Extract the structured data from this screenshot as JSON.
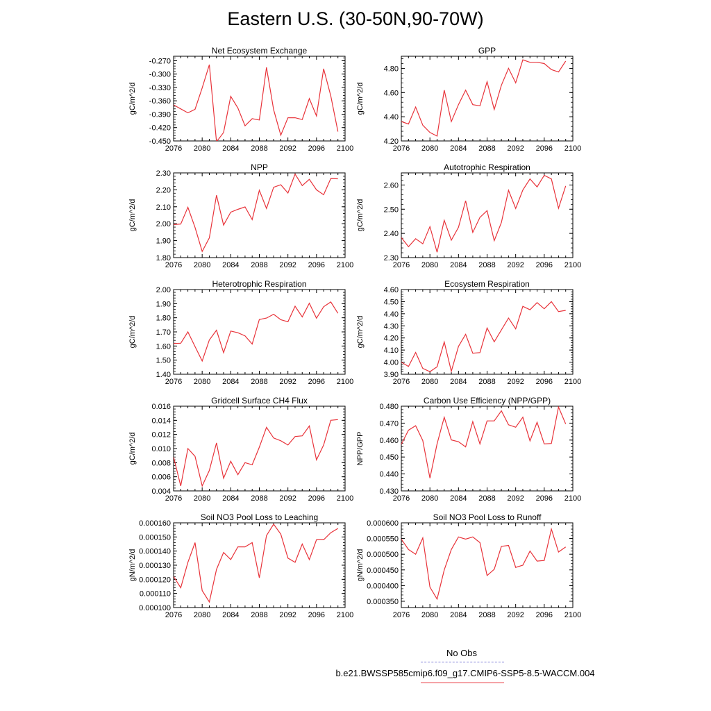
{
  "title": "Eastern U.S. (30-50N,90-70W)",
  "legend": {
    "obs_label": "No Obs",
    "obs_color": "#7b7bd6",
    "model_label": "b.e21.BWSSP585cmip6.f09_g17.CMIP6-SSP5-8.5-WACCM.004",
    "model_color": "#e8333a"
  },
  "chart_data": [
    {
      "type": "line",
      "title": "Net Ecosystem Exchange",
      "ylabel": "gC/m^2/d",
      "xlim": [
        2076,
        2100
      ],
      "ylim": [
        -0.45,
        -0.26
      ],
      "xticks": [
        "2076",
        "2080",
        "2084",
        "2088",
        "2092",
        "2096",
        "2100"
      ],
      "yticks": [
        "-0.270",
        "-0.300",
        "-0.330",
        "-0.360",
        "-0.390",
        "-0.420",
        "-0.450"
      ],
      "x": [
        2076,
        2077,
        2078,
        2079,
        2080,
        2081,
        2082,
        2083,
        2084,
        2085,
        2086,
        2087,
        2088,
        2089,
        2090,
        2091,
        2092,
        2093,
        2094,
        2095,
        2096,
        2097,
        2098,
        2099
      ],
      "series": [
        {
          "color": "#e8333a",
          "values": [
            -0.369,
            -0.378,
            -0.387,
            -0.379,
            -0.331,
            -0.279,
            -0.452,
            -0.431,
            -0.35,
            -0.376,
            -0.416,
            -0.4,
            -0.403,
            -0.285,
            -0.38,
            -0.437,
            -0.398,
            -0.398,
            -0.402,
            -0.355,
            -0.394,
            -0.288,
            -0.349,
            -0.429
          ]
        }
      ]
    },
    {
      "type": "line",
      "title": "GPP",
      "ylabel": "gC/m^2/d",
      "xlim": [
        2076,
        2100
      ],
      "ylim": [
        4.2,
        4.9
      ],
      "xticks": [
        "2076",
        "2080",
        "2084",
        "2088",
        "2092",
        "2096",
        "2100"
      ],
      "yticks": [
        "4.80",
        "4.60",
        "4.40",
        "4.20"
      ],
      "x": [
        2076,
        2077,
        2078,
        2079,
        2080,
        2081,
        2082,
        2083,
        2084,
        2085,
        2086,
        2087,
        2088,
        2089,
        2090,
        2091,
        2092,
        2093,
        2094,
        2095,
        2096,
        2097,
        2098,
        2099
      ],
      "series": [
        {
          "color": "#e8333a",
          "values": [
            4.36,
            4.34,
            4.48,
            4.33,
            4.27,
            4.24,
            4.62,
            4.36,
            4.5,
            4.62,
            4.5,
            4.49,
            4.69,
            4.46,
            4.66,
            4.8,
            4.68,
            4.87,
            4.85,
            4.85,
            4.84,
            4.79,
            4.77,
            4.86
          ]
        }
      ]
    },
    {
      "type": "line",
      "title": "NPP",
      "ylabel": "gC/m^2/d",
      "xlim": [
        2076,
        2100
      ],
      "ylim": [
        1.8,
        2.3
      ],
      "xticks": [
        "2076",
        "2080",
        "2084",
        "2088",
        "2092",
        "2096",
        "2100"
      ],
      "yticks": [
        "2.30",
        "2.20",
        "2.10",
        "2.00",
        "1.90",
        "1.80"
      ],
      "x": [
        2076,
        2077,
        2078,
        2079,
        2080,
        2081,
        2082,
        2083,
        2084,
        2085,
        2086,
        2087,
        2088,
        2089,
        2090,
        2091,
        2092,
        2093,
        2094,
        2095,
        2096,
        2097,
        2098,
        2099
      ],
      "series": [
        {
          "color": "#e8333a",
          "values": [
            1.995,
            1.998,
            2.097,
            1.978,
            1.836,
            1.917,
            2.168,
            1.992,
            2.068,
            2.085,
            2.099,
            2.024,
            2.197,
            2.09,
            2.215,
            2.23,
            2.181,
            2.293,
            2.225,
            2.262,
            2.2,
            2.171,
            2.267,
            2.265
          ]
        }
      ]
    },
    {
      "type": "line",
      "title": "Autotrophic Respiration",
      "ylabel": "gC/m^2/d",
      "xlim": [
        2076,
        2100
      ],
      "ylim": [
        2.3,
        2.65
      ],
      "xticks": [
        "2076",
        "2080",
        "2084",
        "2088",
        "2092",
        "2096",
        "2100"
      ],
      "yticks": [
        "2.60",
        "2.50",
        "2.40",
        "2.30"
      ],
      "x": [
        2076,
        2077,
        2078,
        2079,
        2080,
        2081,
        2082,
        2083,
        2084,
        2085,
        2086,
        2087,
        2088,
        2089,
        2090,
        2091,
        2092,
        2093,
        2094,
        2095,
        2096,
        2097,
        2098,
        2099
      ],
      "series": [
        {
          "color": "#e8333a",
          "values": [
            2.383,
            2.345,
            2.378,
            2.357,
            2.428,
            2.322,
            2.454,
            2.372,
            2.425,
            2.535,
            2.404,
            2.466,
            2.494,
            2.37,
            2.445,
            2.578,
            2.503,
            2.579,
            2.625,
            2.592,
            2.64,
            2.625,
            2.504,
            2.596
          ]
        }
      ]
    },
    {
      "type": "line",
      "title": "Heterotrophic Respiration",
      "ylabel": "gC/m^2/d",
      "xlim": [
        2076,
        2100
      ],
      "ylim": [
        1.4,
        2.0
      ],
      "xticks": [
        "2076",
        "2080",
        "2084",
        "2088",
        "2092",
        "2096",
        "2100"
      ],
      "yticks": [
        "2.00",
        "1.90",
        "1.80",
        "1.70",
        "1.60",
        "1.50",
        "1.40"
      ],
      "x": [
        2076,
        2077,
        2078,
        2079,
        2080,
        2081,
        2082,
        2083,
        2084,
        2085,
        2086,
        2087,
        2088,
        2089,
        2090,
        2091,
        2092,
        2093,
        2094,
        2095,
        2096,
        2097,
        2098,
        2099
      ],
      "series": [
        {
          "color": "#e8333a",
          "values": [
            1.618,
            1.62,
            1.7,
            1.596,
            1.494,
            1.643,
            1.712,
            1.553,
            1.706,
            1.694,
            1.672,
            1.614,
            1.788,
            1.798,
            1.825,
            1.786,
            1.772,
            1.882,
            1.806,
            1.903,
            1.797,
            1.878,
            1.912,
            1.832
          ]
        }
      ]
    },
    {
      "type": "line",
      "title": "Ecosystem Respiration",
      "ylabel": "gC/m^2/d",
      "xlim": [
        2076,
        2100
      ],
      "ylim": [
        3.9,
        4.6
      ],
      "xticks": [
        "2076",
        "2080",
        "2084",
        "2088",
        "2092",
        "2096",
        "2100"
      ],
      "yticks": [
        "4.60",
        "4.50",
        "4.40",
        "4.30",
        "4.20",
        "4.10",
        "4.00",
        "3.90"
      ],
      "x": [
        2076,
        2077,
        2078,
        2079,
        2080,
        2081,
        2082,
        2083,
        2084,
        2085,
        2086,
        2087,
        2088,
        2089,
        2090,
        2091,
        2092,
        2093,
        2094,
        2095,
        2096,
        2097,
        2098,
        2099
      ],
      "series": [
        {
          "color": "#e8333a",
          "values": [
            4.0,
            3.964,
            4.08,
            3.948,
            3.921,
            3.962,
            4.167,
            3.924,
            4.13,
            4.23,
            4.074,
            4.079,
            4.282,
            4.168,
            4.266,
            4.364,
            4.275,
            4.461,
            4.433,
            4.492,
            4.441,
            4.5,
            4.418,
            4.428
          ]
        }
      ]
    },
    {
      "type": "line",
      "title": "Gridcell Surface CH4 Flux",
      "ylabel": "gC/m^2/d",
      "xlim": [
        2076,
        2100
      ],
      "ylim": [
        0.004,
        0.016
      ],
      "xticks": [
        "2076",
        "2080",
        "2084",
        "2088",
        "2092",
        "2096",
        "2100"
      ],
      "yticks": [
        "0.016",
        "0.014",
        "0.012",
        "0.010",
        "0.008",
        "0.006",
        "0.004"
      ],
      "x": [
        2076,
        2077,
        2078,
        2079,
        2080,
        2081,
        2082,
        2083,
        2084,
        2085,
        2086,
        2087,
        2088,
        2089,
        2090,
        2091,
        2092,
        2093,
        2094,
        2095,
        2096,
        2097,
        2098,
        2099
      ],
      "series": [
        {
          "color": "#e8333a",
          "values": [
            0.0088,
            0.0047,
            0.01,
            0.0089,
            0.0047,
            0.0069,
            0.0108,
            0.0058,
            0.0082,
            0.0063,
            0.008,
            0.0077,
            0.0102,
            0.013,
            0.0115,
            0.0111,
            0.0105,
            0.0117,
            0.0118,
            0.0132,
            0.0084,
            0.0105,
            0.014,
            0.0141
          ]
        }
      ]
    },
    {
      "type": "line",
      "title": "Carbon Use Efficiency (NPP/GPP)",
      "ylabel": "NPP/GPP",
      "xlim": [
        2076,
        2100
      ],
      "ylim": [
        0.43,
        0.48
      ],
      "xticks": [
        "2076",
        "2080",
        "2084",
        "2088",
        "2092",
        "2096",
        "2100"
      ],
      "yticks": [
        "0.480",
        "0.470",
        "0.460",
        "0.450",
        "0.440",
        "0.430"
      ],
      "x": [
        2076,
        2077,
        2078,
        2079,
        2080,
        2081,
        2082,
        2083,
        2084,
        2085,
        2086,
        2087,
        2088,
        2089,
        2090,
        2091,
        2092,
        2093,
        2094,
        2095,
        2096,
        2097,
        2098,
        2099
      ],
      "series": [
        {
          "color": "#e8333a",
          "values": [
            0.4575,
            0.4658,
            0.4685,
            0.4597,
            0.4375,
            0.4578,
            0.4735,
            0.4601,
            0.459,
            0.456,
            0.4709,
            0.4577,
            0.4713,
            0.4713,
            0.4773,
            0.469,
            0.4676,
            0.4735,
            0.4595,
            0.4705,
            0.4577,
            0.458,
            0.4795,
            0.4695
          ]
        }
      ]
    },
    {
      "type": "line",
      "title": "Soil NO3 Pool Loss to Leaching",
      "ylabel": "gN/m^2/d",
      "xlim": [
        2076,
        2100
      ],
      "ylim": [
        0.0001,
        0.00016
      ],
      "xticks": [
        "2076",
        "2080",
        "2084",
        "2088",
        "2092",
        "2096",
        "2100"
      ],
      "yticks": [
        "0.000160",
        "0.000150",
        "0.000140",
        "0.000130",
        "0.000120",
        "0.000110",
        "0.000100"
      ],
      "x": [
        2076,
        2077,
        2078,
        2079,
        2080,
        2081,
        2082,
        2083,
        2084,
        2085,
        2086,
        2087,
        2088,
        2089,
        2090,
        2091,
        2092,
        2093,
        2094,
        2095,
        2096,
        2097,
        2098,
        2099
      ],
      "series": [
        {
          "color": "#e8333a",
          "values": [
            0.000122,
            0.000114,
            0.000132,
            0.000146,
            0.000112,
            0.000104,
            0.000127,
            0.000139,
            0.000134,
            0.000143,
            0.000143,
            0.000146,
            0.000121,
            0.000151,
            0.000159,
            0.000152,
            0.000135,
            0.000132,
            0.000145,
            0.000134,
            0.000148,
            0.000148,
            0.000153,
            0.000156
          ]
        }
      ]
    },
    {
      "type": "line",
      "title": "Soil NO3 Pool Loss to Runoff",
      "ylabel": "gN/m^2/d",
      "xlim": [
        2076,
        2100
      ],
      "ylim": [
        0.00033,
        0.0006
      ],
      "xticks": [
        "2076",
        "2080",
        "2084",
        "2088",
        "2092",
        "2096",
        "2100"
      ],
      "yticks": [
        "0.000600",
        "0.000550",
        "0.000500",
        "0.000450",
        "0.000400",
        "0.000350"
      ],
      "x": [
        2076,
        2077,
        2078,
        2079,
        2080,
        2081,
        2082,
        2083,
        2084,
        2085,
        2086,
        2087,
        2088,
        2089,
        2090,
        2091,
        2092,
        2093,
        2094,
        2095,
        2096,
        2097,
        2098,
        2099
      ],
      "series": [
        {
          "color": "#e8333a",
          "values": [
            0.000548,
            0.000515,
            0.0005,
            0.000552,
            0.000395,
            0.000357,
            0.00045,
            0.000515,
            0.000555,
            0.000548,
            0.000555,
            0.000537,
            0.000432,
            0.000452,
            0.000525,
            0.000528,
            0.000458,
            0.000465,
            0.00051,
            0.000478,
            0.00048,
            0.00058,
            0.000507,
            0.000523
          ]
        }
      ]
    }
  ]
}
